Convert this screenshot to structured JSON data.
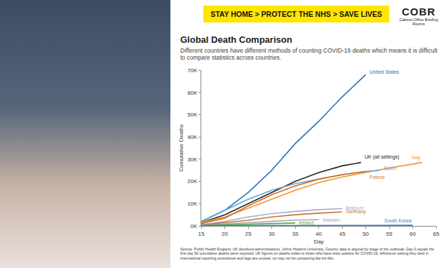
{
  "header": {
    "banner": "STAY HOME > PROTECT THE NHS > SAVE LIVES",
    "logo": "COBR",
    "logo_caption": "Cabinet Office Briefing Rooms"
  },
  "chart_data": {
    "type": "line",
    "title": "Global Death Comparison",
    "subtitle": "Different countries have different methods of counting COVID-19 deaths which means it is difficult to compare statistics across countries.",
    "x_label": "Day",
    "y_label": "Cumulative Deaths",
    "source": "Source: Public Health England, UK devolved administrations, Johns Hopkins University. Country data is aligned by stage of the outbreak. Day 0 equals the first day 50 cumulative deaths were reported. UK figures on deaths relate to those who have tests positive for COVID-19, whichever setting they died in. International reporting procedures and lags are unclear, so may not be comparing like-for-like.",
    "xlim": [
      15,
      65
    ],
    "xticks": [
      15,
      20,
      25,
      30,
      35,
      40,
      45,
      50,
      55,
      60,
      65
    ],
    "ylim": [
      0,
      70000
    ],
    "yticks": [
      {
        "value": 0,
        "label": "0K"
      },
      {
        "value": 10000,
        "label": "10K"
      },
      {
        "value": 20000,
        "label": "20K"
      },
      {
        "value": 30000,
        "label": "30K"
      },
      {
        "value": 40000,
        "label": "40K"
      },
      {
        "value": 50000,
        "label": "50K"
      },
      {
        "value": 60000,
        "label": "60K"
      },
      {
        "value": 70000,
        "label": "70K"
      }
    ],
    "grid": false,
    "series": [
      {
        "name": "United States",
        "color": "#2a6eb5",
        "x": [
          15,
          20,
          25,
          30,
          35,
          40,
          45,
          50
        ],
        "values": [
          2000,
          7000,
          15000,
          25000,
          37000,
          47000,
          58000,
          68000
        ]
      },
      {
        "name": "UK (all settings)",
        "color": "#222222",
        "x": [
          15,
          20,
          25,
          30,
          35,
          40,
          45,
          49
        ],
        "values": [
          1500,
          5000,
          10000,
          15000,
          20000,
          24000,
          27000,
          28500
        ]
      },
      {
        "name": "Italy",
        "color": "#f0962d",
        "x": [
          15,
          20,
          25,
          30,
          35,
          40,
          45,
          50,
          55,
          62
        ],
        "values": [
          1500,
          4000,
          8000,
          12000,
          16000,
          19500,
          22000,
          24000,
          26000,
          28500
        ]
      },
      {
        "name": "Spain",
        "color": "#5fa8d8",
        "x": [
          15,
          20,
          25,
          30,
          35,
          40,
          45,
          50,
          53
        ],
        "values": [
          2000,
          7000,
          12000,
          16000,
          19000,
          21000,
          23000,
          24500,
          25000
        ]
      },
      {
        "name": "France",
        "color": "#d2691e",
        "x": [
          15,
          20,
          25,
          30,
          35,
          40,
          45,
          50
        ],
        "values": [
          1000,
          3500,
          9000,
          14000,
          18000,
          21000,
          23000,
          24500
        ]
      },
      {
        "name": "Belgium",
        "color": "#a9a9d9",
        "x": [
          15,
          20,
          25,
          30,
          35,
          40,
          45
        ],
        "values": [
          500,
          2000,
          4000,
          5500,
          6500,
          7300,
          7800
        ]
      },
      {
        "name": "Germany",
        "color": "#c0762a",
        "x": [
          15,
          20,
          25,
          30,
          35,
          40,
          45
        ],
        "values": [
          400,
          1500,
          2500,
          4000,
          5000,
          5700,
          6300
        ]
      },
      {
        "name": "Sweden",
        "color": "#aaaaaa",
        "x": [
          15,
          20,
          25,
          30,
          35,
          40
        ],
        "values": [
          300,
          800,
          1500,
          2000,
          2600,
          2800
        ]
      },
      {
        "name": "Ireland",
        "color": "#4caf50",
        "x": [
          15,
          20,
          25,
          30,
          35
        ],
        "values": [
          200,
          500,
          900,
          1200,
          1300
        ]
      },
      {
        "name": "South Korea",
        "color": "#3b7fc4",
        "x": [
          15,
          20,
          25,
          30,
          35,
          40,
          45,
          50,
          55,
          60
        ],
        "values": [
          150,
          180,
          200,
          220,
          230,
          240,
          250,
          255,
          260,
          265
        ]
      }
    ]
  }
}
